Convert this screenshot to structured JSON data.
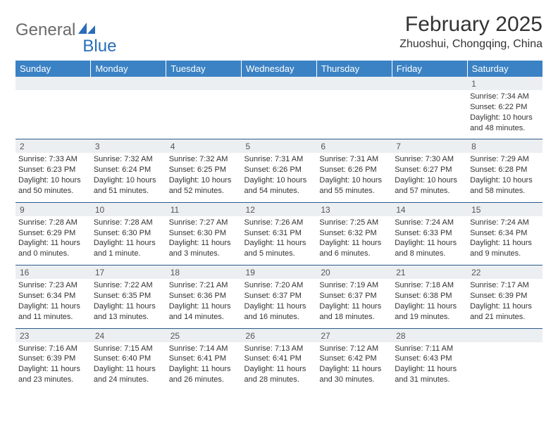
{
  "logo": {
    "text1": "General",
    "text2": "Blue"
  },
  "title": "February 2025",
  "location": "Zhuoshui, Chongqing, China",
  "colors": {
    "header_bg": "#3b82c4",
    "header_text": "#ffffff",
    "daynum_bg": "#eceff1",
    "border": "#2b5a8a",
    "logo_blue": "#2a6db8"
  },
  "day_headers": [
    "Sunday",
    "Monday",
    "Tuesday",
    "Wednesday",
    "Thursday",
    "Friday",
    "Saturday"
  ],
  "weeks": [
    [
      {
        "n": "",
        "lines": []
      },
      {
        "n": "",
        "lines": []
      },
      {
        "n": "",
        "lines": []
      },
      {
        "n": "",
        "lines": []
      },
      {
        "n": "",
        "lines": []
      },
      {
        "n": "",
        "lines": []
      },
      {
        "n": "1",
        "lines": [
          "Sunrise: 7:34 AM",
          "Sunset: 6:22 PM",
          "Daylight: 10 hours and 48 minutes."
        ]
      }
    ],
    [
      {
        "n": "2",
        "lines": [
          "Sunrise: 7:33 AM",
          "Sunset: 6:23 PM",
          "Daylight: 10 hours and 50 minutes."
        ]
      },
      {
        "n": "3",
        "lines": [
          "Sunrise: 7:32 AM",
          "Sunset: 6:24 PM",
          "Daylight: 10 hours and 51 minutes."
        ]
      },
      {
        "n": "4",
        "lines": [
          "Sunrise: 7:32 AM",
          "Sunset: 6:25 PM",
          "Daylight: 10 hours and 52 minutes."
        ]
      },
      {
        "n": "5",
        "lines": [
          "Sunrise: 7:31 AM",
          "Sunset: 6:26 PM",
          "Daylight: 10 hours and 54 minutes."
        ]
      },
      {
        "n": "6",
        "lines": [
          "Sunrise: 7:31 AM",
          "Sunset: 6:26 PM",
          "Daylight: 10 hours and 55 minutes."
        ]
      },
      {
        "n": "7",
        "lines": [
          "Sunrise: 7:30 AM",
          "Sunset: 6:27 PM",
          "Daylight: 10 hours and 57 minutes."
        ]
      },
      {
        "n": "8",
        "lines": [
          "Sunrise: 7:29 AM",
          "Sunset: 6:28 PM",
          "Daylight: 10 hours and 58 minutes."
        ]
      }
    ],
    [
      {
        "n": "9",
        "lines": [
          "Sunrise: 7:28 AM",
          "Sunset: 6:29 PM",
          "Daylight: 11 hours and 0 minutes."
        ]
      },
      {
        "n": "10",
        "lines": [
          "Sunrise: 7:28 AM",
          "Sunset: 6:30 PM",
          "Daylight: 11 hours and 1 minute."
        ]
      },
      {
        "n": "11",
        "lines": [
          "Sunrise: 7:27 AM",
          "Sunset: 6:30 PM",
          "Daylight: 11 hours and 3 minutes."
        ]
      },
      {
        "n": "12",
        "lines": [
          "Sunrise: 7:26 AM",
          "Sunset: 6:31 PM",
          "Daylight: 11 hours and 5 minutes."
        ]
      },
      {
        "n": "13",
        "lines": [
          "Sunrise: 7:25 AM",
          "Sunset: 6:32 PM",
          "Daylight: 11 hours and 6 minutes."
        ]
      },
      {
        "n": "14",
        "lines": [
          "Sunrise: 7:24 AM",
          "Sunset: 6:33 PM",
          "Daylight: 11 hours and 8 minutes."
        ]
      },
      {
        "n": "15",
        "lines": [
          "Sunrise: 7:24 AM",
          "Sunset: 6:34 PM",
          "Daylight: 11 hours and 9 minutes."
        ]
      }
    ],
    [
      {
        "n": "16",
        "lines": [
          "Sunrise: 7:23 AM",
          "Sunset: 6:34 PM",
          "Daylight: 11 hours and 11 minutes."
        ]
      },
      {
        "n": "17",
        "lines": [
          "Sunrise: 7:22 AM",
          "Sunset: 6:35 PM",
          "Daylight: 11 hours and 13 minutes."
        ]
      },
      {
        "n": "18",
        "lines": [
          "Sunrise: 7:21 AM",
          "Sunset: 6:36 PM",
          "Daylight: 11 hours and 14 minutes."
        ]
      },
      {
        "n": "19",
        "lines": [
          "Sunrise: 7:20 AM",
          "Sunset: 6:37 PM",
          "Daylight: 11 hours and 16 minutes."
        ]
      },
      {
        "n": "20",
        "lines": [
          "Sunrise: 7:19 AM",
          "Sunset: 6:37 PM",
          "Daylight: 11 hours and 18 minutes."
        ]
      },
      {
        "n": "21",
        "lines": [
          "Sunrise: 7:18 AM",
          "Sunset: 6:38 PM",
          "Daylight: 11 hours and 19 minutes."
        ]
      },
      {
        "n": "22",
        "lines": [
          "Sunrise: 7:17 AM",
          "Sunset: 6:39 PM",
          "Daylight: 11 hours and 21 minutes."
        ]
      }
    ],
    [
      {
        "n": "23",
        "lines": [
          "Sunrise: 7:16 AM",
          "Sunset: 6:39 PM",
          "Daylight: 11 hours and 23 minutes."
        ]
      },
      {
        "n": "24",
        "lines": [
          "Sunrise: 7:15 AM",
          "Sunset: 6:40 PM",
          "Daylight: 11 hours and 24 minutes."
        ]
      },
      {
        "n": "25",
        "lines": [
          "Sunrise: 7:14 AM",
          "Sunset: 6:41 PM",
          "Daylight: 11 hours and 26 minutes."
        ]
      },
      {
        "n": "26",
        "lines": [
          "Sunrise: 7:13 AM",
          "Sunset: 6:41 PM",
          "Daylight: 11 hours and 28 minutes."
        ]
      },
      {
        "n": "27",
        "lines": [
          "Sunrise: 7:12 AM",
          "Sunset: 6:42 PM",
          "Daylight: 11 hours and 30 minutes."
        ]
      },
      {
        "n": "28",
        "lines": [
          "Sunrise: 7:11 AM",
          "Sunset: 6:43 PM",
          "Daylight: 11 hours and 31 minutes."
        ]
      },
      {
        "n": "",
        "lines": []
      }
    ]
  ]
}
